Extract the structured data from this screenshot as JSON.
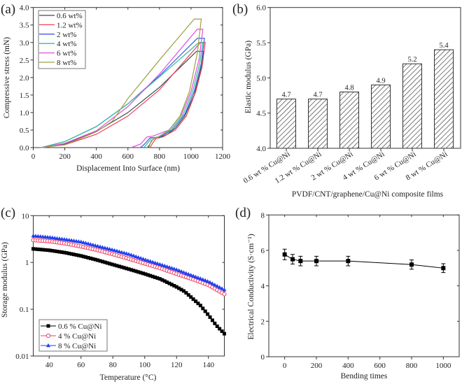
{
  "chart_data": [
    {
      "panel": "(a)",
      "type": "line",
      "xlabel": "Displacement Into Surface (nm)",
      "ylabel": "Compressive stress (mN)",
      "xlim": [
        0,
        1200
      ],
      "ylim": [
        0,
        4.0
      ],
      "xticks": [
        "0",
        "200",
        "400",
        "600",
        "800",
        "1000",
        "1200"
      ],
      "yticks": [
        "0.0",
        "0.5",
        "1.0",
        "1.5",
        "2.0",
        "2.5",
        "3.0",
        "3.5",
        "4.0"
      ],
      "legend": "top-left",
      "series": [
        {
          "name": "0.6 wt%",
          "color": "#2f5050",
          "points": [
            [
              60,
              0
            ],
            [
              200,
              0.1
            ],
            [
              400,
              0.46
            ],
            [
              600,
              1.0
            ],
            [
              800,
              1.72
            ],
            [
              1035,
              2.75
            ],
            [
              1080,
              2.75
            ],
            [
              1060,
              2.2
            ],
            [
              1020,
              1.5
            ],
            [
              960,
              0.9
            ],
            [
              900,
              0.55
            ],
            [
              850,
              0.38
            ],
            [
              800,
              0.28
            ],
            [
              770,
              0.27
            ],
            [
              750,
              0.2
            ],
            [
              730,
              0
            ]
          ]
        },
        {
          "name": "1.2 wt%",
          "color": "#f0405a",
          "points": [
            [
              40,
              0
            ],
            [
              200,
              0.08
            ],
            [
              400,
              0.38
            ],
            [
              600,
              0.9
            ],
            [
              800,
              1.65
            ],
            [
              1060,
              3.0
            ],
            [
              1090,
              3.0
            ],
            [
              1070,
              2.3
            ],
            [
              1030,
              1.6
            ],
            [
              970,
              0.9
            ],
            [
              900,
              0.5
            ],
            [
              820,
              0.3
            ],
            [
              780,
              0.27
            ],
            [
              760,
              0.15
            ],
            [
              740,
              0
            ]
          ]
        },
        {
          "name": "2 wt%",
          "color": "#3a5ee0",
          "points": [
            [
              50,
              0
            ],
            [
              200,
              0.17
            ],
            [
              400,
              0.6
            ],
            [
              600,
              1.25
            ],
            [
              800,
              2.05
            ],
            [
              1040,
              3.12
            ],
            [
              1085,
              3.12
            ],
            [
              1065,
              2.4
            ],
            [
              1020,
              1.6
            ],
            [
              960,
              0.95
            ],
            [
              880,
              0.5
            ],
            [
              800,
              0.3
            ],
            [
              740,
              0.28
            ],
            [
              710,
              0.12
            ],
            [
              680,
              0
            ]
          ]
        },
        {
          "name": "4 wt%",
          "color": "#2fbf9a",
          "points": [
            [
              50,
              0
            ],
            [
              200,
              0.17
            ],
            [
              400,
              0.6
            ],
            [
              600,
              1.25
            ],
            [
              800,
              2.02
            ],
            [
              1050,
              3.0
            ],
            [
              1075,
              3.0
            ],
            [
              1055,
              2.4
            ],
            [
              1010,
              1.6
            ],
            [
              950,
              0.95
            ],
            [
              870,
              0.5
            ],
            [
              790,
              0.3
            ],
            [
              750,
              0.27
            ],
            [
              720,
              0.1
            ],
            [
              700,
              0
            ]
          ]
        },
        {
          "name": "6 wt%",
          "color": "#e050e0",
          "points": [
            [
              50,
              0
            ],
            [
              200,
              0.12
            ],
            [
              400,
              0.48
            ],
            [
              600,
              1.17
            ],
            [
              800,
              2.1
            ],
            [
              1040,
              3.38
            ],
            [
              1075,
              3.38
            ],
            [
              1050,
              2.5
            ],
            [
              1000,
              1.6
            ],
            [
              940,
              0.95
            ],
            [
              860,
              0.5
            ],
            [
              760,
              0.33
            ],
            [
              720,
              0.3
            ],
            [
              680,
              0.1
            ],
            [
              620,
              0
            ]
          ]
        },
        {
          "name": "8 wt%",
          "color": "#a0a040",
          "points": [
            [
              50,
              0
            ],
            [
              200,
              0.08
            ],
            [
              400,
              0.45
            ],
            [
              500,
              0.75
            ],
            [
              600,
              1.4
            ],
            [
              800,
              2.5
            ],
            [
              1020,
              3.67
            ],
            [
              1065,
              3.67
            ],
            [
              1040,
              2.7
            ],
            [
              990,
              1.6
            ],
            [
              930,
              0.9
            ],
            [
              860,
              0.5
            ],
            [
              790,
              0.3
            ],
            [
              760,
              0.25
            ],
            [
              740,
              0.1
            ],
            [
              720,
              0
            ]
          ]
        }
      ]
    },
    {
      "panel": "(b)",
      "type": "bar",
      "xlabel": "PVDF/CNT/graphene/Cu@Ni composite films",
      "ylabel": "Elastic modulus (GPa)",
      "ylim": [
        4.0,
        6.0
      ],
      "yticks": [
        "4.0",
        "4.5",
        "5.0",
        "5.5",
        "6.0"
      ],
      "categories": [
        "0.6 wt % Cu@Ni",
        "1.2 wt % Cu@Ni",
        "2 wt % Cu@Ni",
        "4 wt % Cu@Ni",
        "6 wt % Cu@Ni",
        "8 wt % Cu@Ni"
      ],
      "values": [
        4.7,
        4.7,
        4.8,
        4.9,
        5.2,
        5.4
      ],
      "data_labels": [
        "4.7",
        "4.7",
        "4.8",
        "4.9",
        "5.2",
        "5.4"
      ],
      "bar_fill": "hatched"
    },
    {
      "panel": "(c)",
      "type": "scatter",
      "xlabel": "Temperature (°C)",
      "ylabel": "Storage modulus (GPa)",
      "xlim": [
        30,
        150
      ],
      "ylim": [
        0.01,
        10
      ],
      "yscale": "log",
      "xticks": [
        "40",
        "60",
        "80",
        "100",
        "120",
        "140"
      ],
      "yticks": [
        "0.01",
        "0.1",
        "1",
        "10"
      ],
      "legend": "bottom-left",
      "series": [
        {
          "name": "0.6 % Cu@Ni",
          "color": "#000000",
          "marker": "filled-square",
          "x": [
            30,
            40,
            50,
            60,
            70,
            80,
            90,
            100,
            110,
            120,
            125,
            130,
            135,
            140,
            145,
            150
          ],
          "y": [
            1.95,
            1.82,
            1.62,
            1.38,
            1.13,
            0.9,
            0.72,
            0.57,
            0.44,
            0.3,
            0.24,
            0.17,
            0.12,
            0.075,
            0.045,
            0.03
          ]
        },
        {
          "name": "4 % Cu@Ni",
          "color": "#f04060",
          "marker": "open-circle",
          "x": [
            30,
            40,
            50,
            60,
            70,
            80,
            90,
            100,
            110,
            120,
            130,
            140,
            150
          ],
          "y": [
            3.0,
            2.85,
            2.55,
            2.2,
            1.85,
            1.5,
            1.2,
            0.95,
            0.75,
            0.57,
            0.44,
            0.33,
            0.21
          ]
        },
        {
          "name": "8 % Cu@Ni",
          "color": "#2040f0",
          "marker": "filled-triangle",
          "x": [
            30,
            40,
            50,
            60,
            70,
            80,
            90,
            100,
            110,
            120,
            130,
            140,
            150
          ],
          "y": [
            3.7,
            3.45,
            3.1,
            2.75,
            2.25,
            1.85,
            1.5,
            1.15,
            0.9,
            0.7,
            0.52,
            0.39,
            0.26
          ]
        }
      ]
    },
    {
      "panel": "(d)",
      "type": "line",
      "xlabel": "Bending times",
      "ylabel": "Electrical Conductivity (S·cm⁻¹)",
      "xlim": [
        -100,
        1100
      ],
      "ylim": [
        0,
        8
      ],
      "xticks": [
        "0",
        "200",
        "400",
        "600",
        "800",
        "1000"
      ],
      "yticks": [
        "0",
        "2",
        "4",
        "6",
        "8"
      ],
      "series": [
        {
          "color": "#000000",
          "marker": "filled-square",
          "x": [
            0,
            50,
            100,
            200,
            400,
            800,
            1000
          ],
          "y": [
            5.77,
            5.5,
            5.4,
            5.4,
            5.4,
            5.2,
            5.0
          ],
          "error": [
            0.3,
            0.27,
            0.27,
            0.27,
            0.27,
            0.26,
            0.25
          ]
        }
      ]
    }
  ]
}
